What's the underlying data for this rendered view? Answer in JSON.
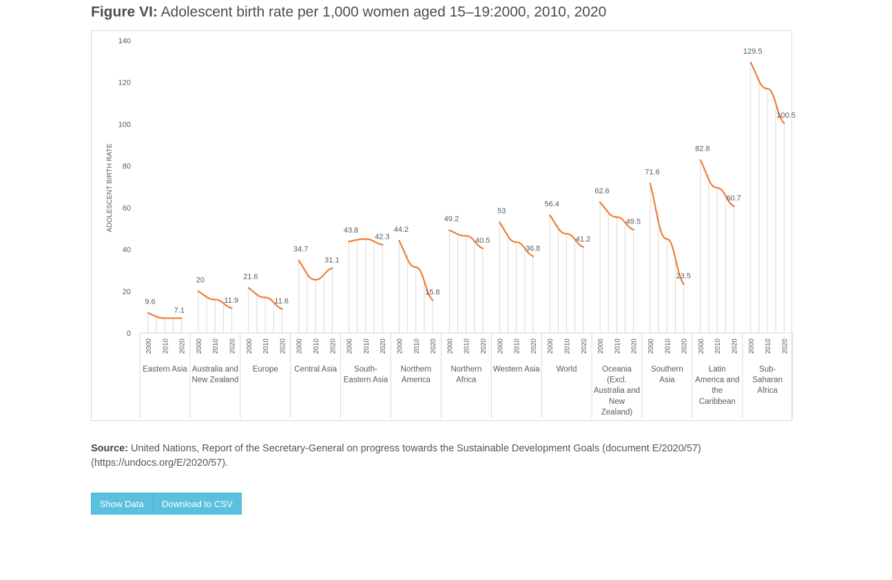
{
  "figure": {
    "title_bold": "Figure VI:",
    "title_rest": "Adolescent birth rate per 1,000 women aged 15–19:2000, 2010, 2020"
  },
  "source": {
    "label": "Source:",
    "text": "United Nations, Report of the Secretary-General on progress towards the Sustainable Development Goals (document E/2020/57) (https://undocs.org/E/2020/57)."
  },
  "buttons": {
    "show_data": "Show Data",
    "download_csv": "Download to CSV"
  },
  "colors": {
    "line": "#ed7d31",
    "dropline": "#d9d9d9",
    "button": "#5bc0de"
  },
  "chart_data": {
    "type": "line",
    "ylabel": "ADOLESCENT BIRTH RATE",
    "xlabel": "",
    "ylim": [
      0,
      140
    ],
    "yticks": [
      0,
      20,
      40,
      60,
      80,
      100,
      120,
      140
    ],
    "x": [
      "2000",
      "2010",
      "2020"
    ],
    "grid": false,
    "drop_lines": true,
    "groups": [
      {
        "name": [
          "Eastern Asia"
        ],
        "values": [
          9.6,
          7.1,
          7.1
        ],
        "labels": [
          "9.6",
          "",
          "7.1"
        ]
      },
      {
        "name": [
          "Australia and",
          "New Zealand"
        ],
        "values": [
          20,
          16,
          11.9
        ],
        "labels": [
          "20",
          "",
          "11.9"
        ]
      },
      {
        "name": [
          "Europe"
        ],
        "values": [
          21.6,
          17,
          11.6
        ],
        "labels": [
          "21.6",
          "",
          "11.6"
        ]
      },
      {
        "name": [
          "Central Asia"
        ],
        "values": [
          34.7,
          25.5,
          31.1
        ],
        "labels": [
          "34.7",
          "",
          "31.1"
        ]
      },
      {
        "name": [
          "South-",
          "Eastern Asia"
        ],
        "values": [
          43.8,
          45,
          42.3
        ],
        "labels": [
          "43.8",
          "",
          "42.3"
        ]
      },
      {
        "name": [
          "Northern",
          "America"
        ],
        "values": [
          44.2,
          31.5,
          15.8
        ],
        "labels": [
          "44.2",
          "",
          "15.8"
        ]
      },
      {
        "name": [
          "Northern",
          "Africa"
        ],
        "values": [
          49.2,
          46.5,
          40.5
        ],
        "labels": [
          "49.2",
          "",
          "40.5"
        ]
      },
      {
        "name": [
          "Western Asia"
        ],
        "values": [
          53,
          43.5,
          36.8
        ],
        "labels": [
          "53",
          "",
          "36.8"
        ]
      },
      {
        "name": [
          "World"
        ],
        "values": [
          56.4,
          47.5,
          41.2
        ],
        "labels": [
          "56.4",
          "",
          "41.2"
        ]
      },
      {
        "name": [
          "Oceania",
          "(Excl.",
          "Australia and",
          "New",
          "Zealand)"
        ],
        "values": [
          62.6,
          55.5,
          49.5
        ],
        "labels": [
          "62.6",
          "",
          "49.5"
        ]
      },
      {
        "name": [
          "Southern",
          "Asia"
        ],
        "values": [
          71.6,
          45,
          23.5
        ],
        "labels": [
          "71.6",
          "",
          "23.5"
        ]
      },
      {
        "name": [
          "Latin",
          "America and",
          "the",
          "Caribbean"
        ],
        "values": [
          82.8,
          69.5,
          60.7
        ],
        "labels": [
          "82.8",
          "",
          "60.7"
        ]
      },
      {
        "name": [
          "Sub-",
          "Saharan",
          "Africa"
        ],
        "values": [
          129.5,
          117,
          100.5
        ],
        "labels": [
          "129.5",
          "",
          "100.5"
        ]
      }
    ]
  }
}
